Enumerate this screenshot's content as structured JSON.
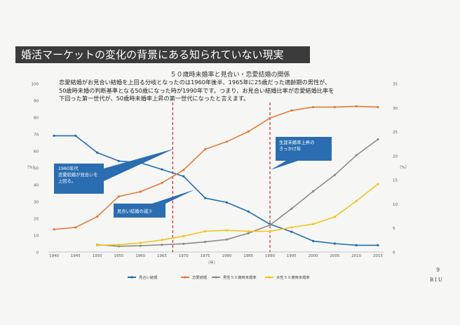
{
  "slide_title": "婚活マーケットの変化の背景にある知られていない現実",
  "chart_title": "５０歳時未婚率と見合い・恋愛結婚の関係",
  "lead_lines": [
    "恋愛結婚がお見合い結婚を上回る分岐となったのは1960年後半、1965年に25歳だった適齢期の男性が、",
    "50歳時未婚の判断基準となる50歳になった時が1990年です。つまり、お見合い結婚比率が恋愛結婚比率を",
    "下回った第一世代が、50歳時未婚率上昇の第一世代になったと言えます。"
  ],
  "page_number": "9",
  "logo_text": "BIU",
  "colors": {
    "miai": "#1f6fb2",
    "renai": "#e07b39",
    "male": "#8c8c8c",
    "female": "#f0c419",
    "vline": "#e02020",
    "callout": "#2a6db0"
  },
  "chart_data": {
    "type": "line",
    "xlabel": "（年）",
    "ylabel_left": "（%）",
    "ylabel_right": "（%）",
    "x": [
      1940,
      1945,
      1950,
      1955,
      1960,
      1965,
      1970,
      1975,
      1980,
      1985,
      1990,
      1995,
      2000,
      2005,
      2010,
      2015
    ],
    "ylim_left": [
      0,
      100
    ],
    "ylim_right": [
      0,
      35
    ],
    "yticks_left": [
      0,
      10,
      20,
      30,
      40,
      50,
      60,
      70,
      80,
      90,
      100
    ],
    "yticks_right": [
      0,
      5,
      10,
      15,
      20,
      25,
      30,
      35
    ],
    "series": [
      {
        "name": "見合い結婚",
        "axis": "left",
        "color": "#1f6fb2",
        "x": [
          1940,
          1945,
          1950,
          1955,
          1960,
          1965,
          1970,
          1975,
          1980,
          1985,
          1990,
          1995,
          2000,
          2005,
          2010,
          2015
        ],
        "values": [
          69,
          69,
          59,
          54,
          53,
          49,
          44.9,
          32,
          29.4,
          24,
          16.5,
          12,
          6.5,
          5,
          4,
          4
        ]
      },
      {
        "name": "恋愛結婚",
        "axis": "left",
        "color": "#e07b39",
        "x": [
          1940,
          1945,
          1950,
          1955,
          1960,
          1965,
          1970,
          1975,
          1980,
          1985,
          1990,
          1995,
          2000,
          2005,
          2010,
          2015
        ],
        "values": [
          13.4,
          14.6,
          21,
          33,
          35.8,
          41,
          48.7,
          61,
          65.5,
          71.5,
          79.5,
          84,
          86,
          86,
          86.5,
          86
        ]
      },
      {
        "name": "男性５０歳時未婚率",
        "axis": "right",
        "color": "#8c8c8c",
        "x": [
          1950,
          1955,
          1960,
          1965,
          1970,
          1975,
          1980,
          1985,
          1990,
          1995,
          2000,
          2005,
          2010,
          2015
        ],
        "values": [
          1.5,
          1.2,
          1.3,
          1.5,
          1.7,
          2.1,
          2.6,
          3.9,
          5.6,
          9.0,
          12.6,
          16.0,
          20.1,
          23.4
        ]
      },
      {
        "name": "女性５０歳時未婚率",
        "axis": "right",
        "color": "#f0c419",
        "x": [
          1950,
          1955,
          1960,
          1965,
          1970,
          1975,
          1980,
          1985,
          1990,
          1995,
          2000,
          2005,
          2010,
          2015
        ],
        "values": [
          1.4,
          1.5,
          1.9,
          2.5,
          3.3,
          4.3,
          4.5,
          4.3,
          4.3,
          5.1,
          5.8,
          7.3,
          10.6,
          14.1
        ]
      }
    ],
    "vlines": [
      1967.5,
      1990
    ],
    "annotations": [
      {
        "name": "callout-miai-renai",
        "lines": [
          "1960年代",
          "恋愛結婚が見合いを",
          "上回る。"
        ]
      },
      {
        "name": "callout-miai-decline",
        "lines": [
          "見合い結婚の減少"
        ]
      },
      {
        "name": "callout-unmarried-rise",
        "lines": [
          "生涯未婚率上昇の",
          "きっかけ年"
        ]
      }
    ],
    "legend_position": "bottom"
  }
}
